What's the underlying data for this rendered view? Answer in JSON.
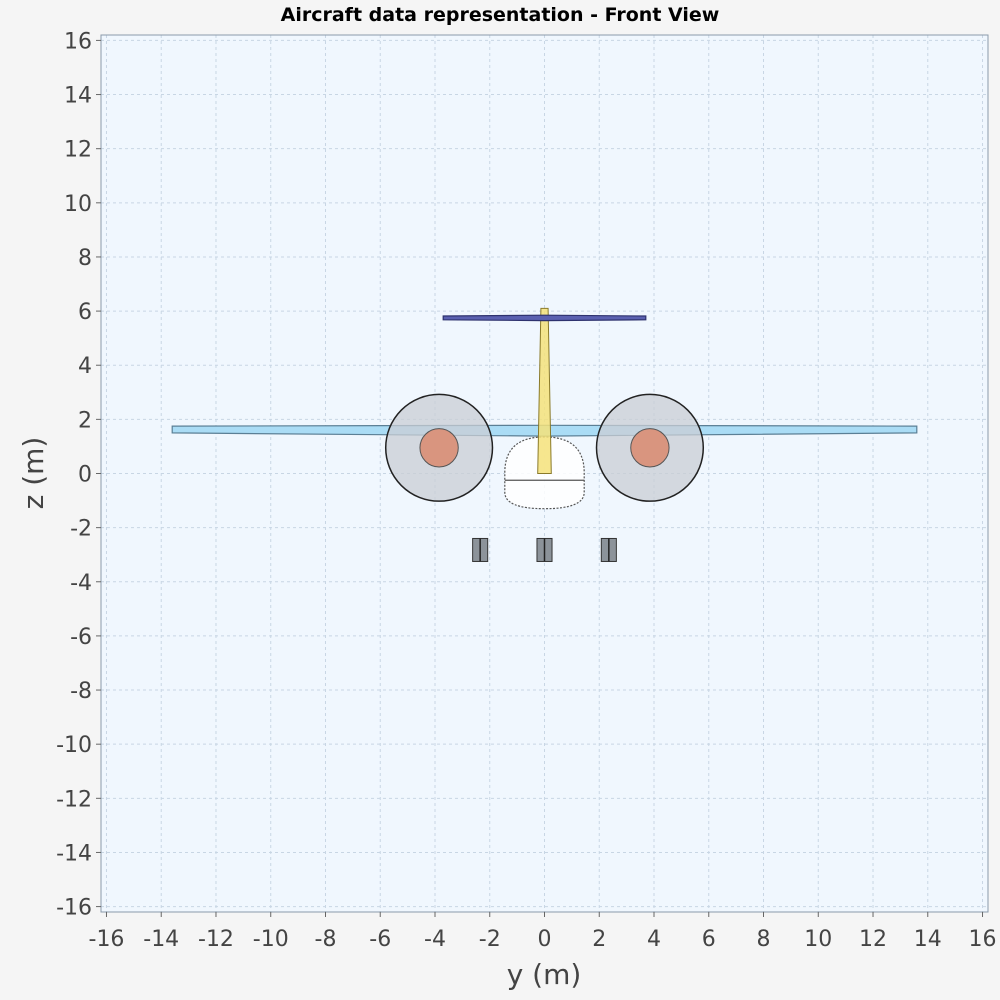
{
  "chart_data": {
    "type": "diagram",
    "title": "Aircraft data representation - Front View",
    "xlabel": "y (m)",
    "ylabel": "z (m)",
    "xlim": [
      -16.2,
      16.2
    ],
    "ylim": [
      -16.2,
      16.2
    ],
    "xticks": [
      -16,
      -14,
      -12,
      -10,
      -8,
      -6,
      -4,
      -2,
      0,
      2,
      4,
      6,
      8,
      10,
      12,
      14,
      16
    ],
    "yticks": [
      -16,
      -14,
      -12,
      -10,
      -8,
      -6,
      -4,
      -2,
      0,
      2,
      4,
      6,
      8,
      10,
      12,
      14,
      16
    ],
    "grid": true,
    "colors": {
      "background": "#f5f5f5",
      "plot_background": "#f0f7fe",
      "grid": "#c8d6e4",
      "wing": "#aadcf5",
      "horizontal_tail": "#5a60b0",
      "vertical_tail": "#f5e27a",
      "fuselage": "#ffffff",
      "nacelle": "#c9ced4",
      "engine_core": "#d9957f",
      "landing_gear": "#8c939a"
    },
    "components": {
      "wing": {
        "span_half": 13.6,
        "root_z_top": 1.78,
        "root_z_bottom": 1.38,
        "tip_z_top": 1.75,
        "tip_z_bottom": 1.5
      },
      "horizontal_tail": {
        "span_half": 3.7,
        "z_center": 5.75,
        "root_thickness": 0.2,
        "tip_thickness": 0.14
      },
      "vertical_tail": {
        "z_bottom": 0.0,
        "z_top": 6.1,
        "root_half_width": 0.25,
        "tip_half_width": 0.13
      },
      "fuselage": {
        "half_width": 1.45,
        "z_top": 1.35,
        "z_bottom": -1.3,
        "floor_z": -0.25
      },
      "nacelles": [
        {
          "y": -3.85,
          "z": 0.95,
          "radius": 1.95,
          "core_radius": 0.7
        },
        {
          "y": 3.85,
          "z": 0.95,
          "radius": 1.95,
          "core_radius": 0.7
        }
      ],
      "landing_gear": [
        {
          "y": -2.35,
          "z_top": -2.4,
          "z_bottom": -3.25,
          "width": 0.55
        },
        {
          "y": 0.0,
          "z_top": -2.4,
          "z_bottom": -3.25,
          "width": 0.55
        },
        {
          "y": 2.35,
          "z_top": -2.4,
          "z_bottom": -3.25,
          "width": 0.55
        }
      ]
    }
  }
}
